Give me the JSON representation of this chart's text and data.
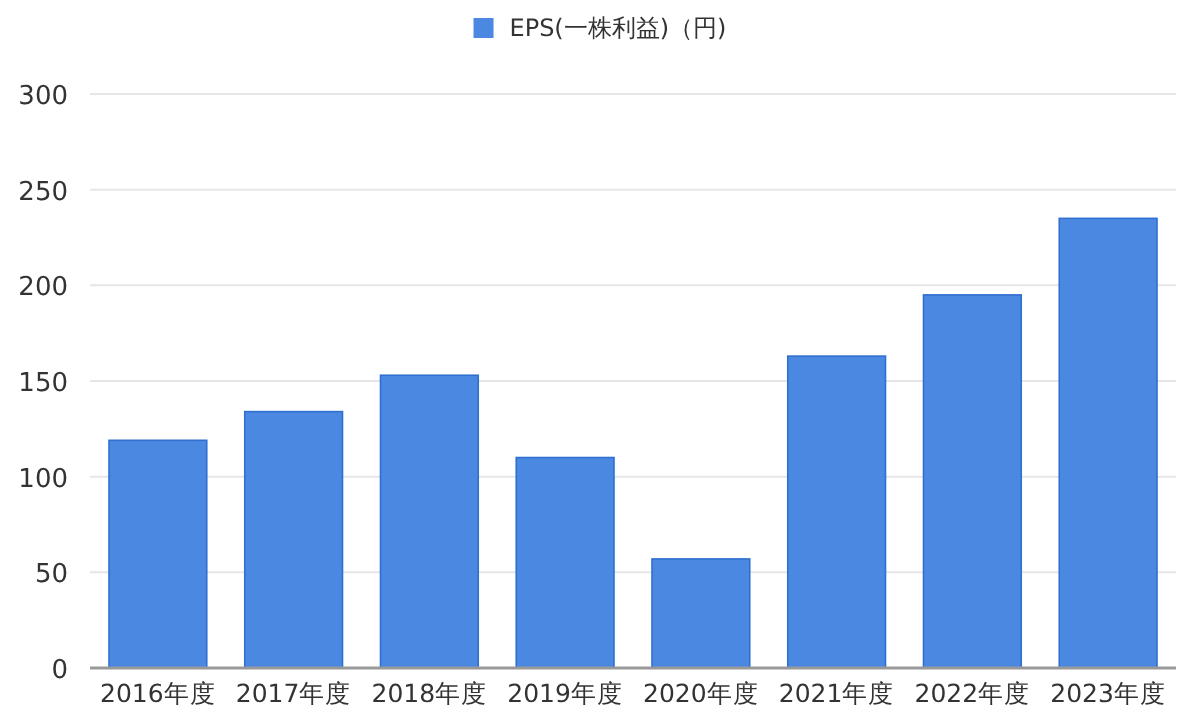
{
  "chart_data": {
    "type": "bar",
    "categories": [
      "2016年度",
      "2017年度",
      "2018年度",
      "2019年度",
      "2020年度",
      "2021年度",
      "2022年度",
      "2023年度"
    ],
    "series": [
      {
        "name": "EPS(一株利益)（円)",
        "color": "#4a88e2",
        "values": [
          119,
          134,
          153,
          110,
          57,
          163,
          195,
          235
        ]
      }
    ],
    "ylim": [
      0,
      300
    ],
    "yticks": [
      0,
      50,
      100,
      150,
      200,
      250,
      300
    ],
    "grid": "y",
    "legend": "top"
  }
}
